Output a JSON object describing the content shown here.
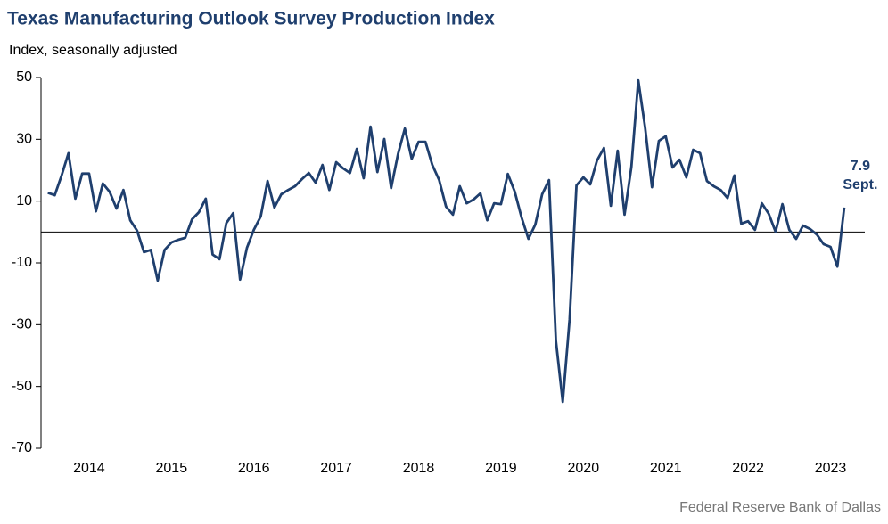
{
  "chart_data": {
    "type": "line",
    "title": "Texas Manufacturing Outlook Survey Production Index",
    "subtitle": "Index, seasonally adjusted",
    "source": "Federal Reserve Bank of Dallas",
    "annotation": "Sept.",
    "categories": [
      null,
      null,
      null,
      null,
      null,
      null,
      "2014",
      null,
      null,
      null,
      null,
      null,
      null,
      null,
      null,
      null,
      null,
      null,
      "2015",
      null,
      null,
      null,
      null,
      null,
      null,
      null,
      null,
      null,
      null,
      null,
      "2016",
      null,
      null,
      null,
      null,
      null,
      null,
      null,
      null,
      null,
      null,
      null,
      "2017",
      null,
      null,
      null,
      null,
      null,
      null,
      null,
      null,
      null,
      null,
      null,
      "2018",
      null,
      null,
      null,
      null,
      null,
      null,
      null,
      null,
      null,
      null,
      null,
      "2019",
      null,
      null,
      null,
      null,
      null,
      null,
      null,
      null,
      null,
      null,
      null,
      "2020",
      null,
      null,
      null,
      null,
      null,
      null,
      null,
      null,
      null,
      null,
      null,
      "2021",
      null,
      null,
      null,
      null,
      null,
      null,
      null,
      null,
      null,
      null,
      null,
      "2022",
      null,
      null,
      null,
      null,
      null,
      null,
      null,
      null,
      null,
      null,
      null,
      "2023",
      null,
      null
    ],
    "series": [
      {
        "name": "Production Index",
        "color": "#1f3f6e",
        "values": [
          12.7,
          11.9,
          18.3,
          25.5,
          10.8,
          18.9,
          18.9,
          6.7,
          15.7,
          13,
          7.6,
          13.6,
          3.8,
          0.4,
          -6.5,
          -5.8,
          -15.7,
          -5.8,
          -3.4,
          -2.5,
          -1.9,
          4.1,
          6.4,
          10.8,
          -7.3,
          -8.8,
          2.9,
          6.1,
          -15.4,
          -5.1,
          0.7,
          5,
          16.5,
          7.9,
          12.2,
          13.6,
          14.8,
          17.1,
          19.1,
          16,
          21.7,
          13.6,
          22.6,
          20.6,
          19.1,
          26.9,
          17.4,
          34.1,
          19.4,
          30.1,
          14.2,
          25.2,
          33.5,
          23.7,
          29.2,
          29.2,
          21.7,
          16.8,
          8.2,
          5.6,
          14.8,
          9.3,
          10.5,
          12.5,
          3.8,
          9.3,
          9,
          18.8,
          13.1,
          4.7,
          -2.2,
          2.4,
          12.2,
          16.8,
          -35.1,
          -55,
          -28.2,
          15.1,
          17.7,
          15.4,
          23.2,
          27.2,
          8.5,
          26.3,
          5.6,
          21.1,
          49.1,
          33.8,
          14.5,
          29.5,
          31,
          20.9,
          23.4,
          17.7,
          26.6,
          25.5,
          16.5,
          14.8,
          13.6,
          11,
          18.3,
          2.7,
          3.5,
          0.7,
          9.3,
          5.9,
          0.1,
          9,
          0.7,
          -2.2,
          2.1,
          1,
          -0.8,
          -3.9,
          -4.8,
          -11.2,
          7.9
        ],
        "value_labels": [
          null,
          null,
          null,
          null,
          null,
          null,
          null,
          null,
          null,
          null,
          null,
          null,
          null,
          null,
          null,
          null,
          null,
          null,
          null,
          null,
          null,
          null,
          null,
          null,
          null,
          null,
          null,
          null,
          null,
          null,
          null,
          null,
          null,
          null,
          null,
          null,
          null,
          null,
          null,
          null,
          null,
          null,
          null,
          null,
          null,
          null,
          null,
          null,
          null,
          null,
          null,
          null,
          null,
          null,
          null,
          null,
          null,
          null,
          null,
          null,
          null,
          null,
          null,
          null,
          null,
          null,
          null,
          null,
          null,
          null,
          null,
          null,
          null,
          null,
          null,
          null,
          null,
          null,
          null,
          null,
          null,
          null,
          null,
          null,
          null,
          null,
          null,
          null,
          null,
          null,
          null,
          null,
          null,
          null,
          null,
          null,
          null,
          null,
          null,
          null,
          null,
          null,
          null,
          null,
          null,
          null,
          null,
          null,
          null,
          null,
          null,
          null,
          null,
          null,
          null,
          null,
          "7.9"
        ]
      }
    ],
    "ylim": [
      -70,
      50
    ],
    "yticks": [
      -70,
      -50,
      -30,
      -10,
      10,
      30,
      50
    ],
    "zero_line": true
  }
}
